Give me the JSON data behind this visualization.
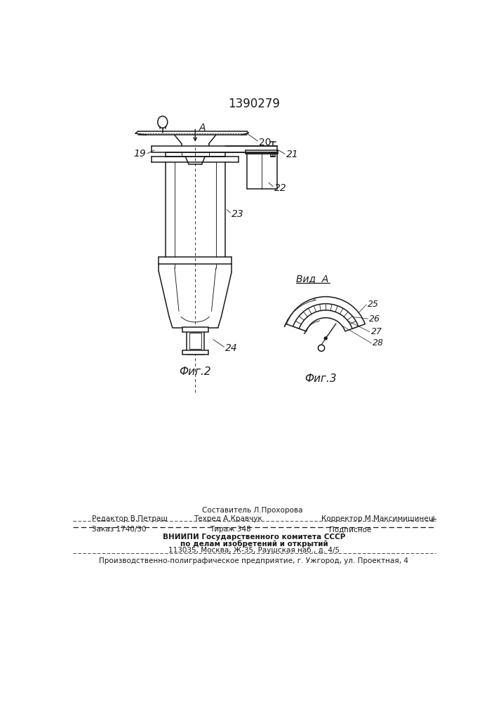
{
  "patent_number": "1390279",
  "background_color": "#ffffff",
  "line_color": "#1a1a1a",
  "fig2_label": "Фиг.2",
  "fig3_label": "Фиг.3",
  "view_label": "Вид  A",
  "footer": {
    "sostavitel": "Составитель Л.Прохорова",
    "redaktor": "Редактор В.Петраш",
    "tehred": "Техред А.Кравчук",
    "korrektor": "Корректор М.Максимишинец",
    "zakaz": "Заказ 1740/30",
    "tirazh": "Тираж 348",
    "podpisnoe": "Подписное",
    "vniipи1": "ВНИИПИ Государственного комитета СССР",
    "vniipи2": "по делам изобретений и открытий",
    "address": "113035, Москва, Ж-35, Раушская наб., д. 4/5",
    "predpr": "Производственно-полиграфическое предприятие, г. Ужгород, ул. Проектная, 4"
  }
}
